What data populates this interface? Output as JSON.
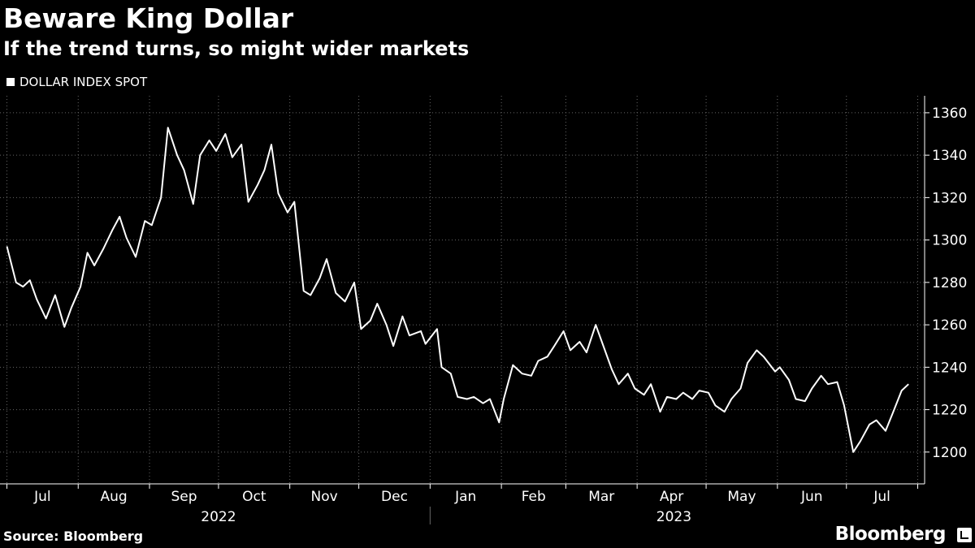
{
  "header": {
    "title": "Beware King Dollar",
    "subtitle": "If the trend turns, so might wider markets"
  },
  "footer": {
    "source": "Source: Bloomberg",
    "brand": "Bloomberg"
  },
  "colors": {
    "background": "#000000",
    "line": "#ffffff",
    "grid": "#666666",
    "text": "#ffffff"
  },
  "chart_data": {
    "type": "line",
    "title": "Beware King Dollar",
    "subtitle": "If the trend turns, so might wider markets",
    "legend": {
      "entries": [
        "DOLLAR INDEX SPOT"
      ],
      "placement": "top-left"
    },
    "y_axis": {
      "side": "right",
      "ylim": [
        1185,
        1368
      ],
      "ticks": [
        1200,
        1220,
        1240,
        1260,
        1280,
        1300,
        1320,
        1340,
        1360
      ],
      "grid": true
    },
    "x_axis": {
      "months": [
        "Jul",
        "Aug",
        "Sep",
        "Oct",
        "Nov",
        "Dec",
        "Jan",
        "Feb",
        "Mar",
        "Apr",
        "May",
        "Jun",
        "Jul"
      ],
      "years": [
        {
          "label": "2022",
          "months": [
            "Jul",
            "Aug",
            "Sep",
            "Oct",
            "Nov",
            "Dec"
          ]
        },
        {
          "label": "2023",
          "months": [
            "Jan",
            "Feb",
            "Mar",
            "Apr",
            "May",
            "Jun",
            "Jul"
          ]
        }
      ],
      "grid": true
    },
    "series": [
      {
        "name": "DOLLAR INDEX SPOT",
        "x": [
          "2022-07-01",
          "2022-07-05",
          "2022-07-08",
          "2022-07-11",
          "2022-07-14",
          "2022-07-18",
          "2022-07-22",
          "2022-07-26",
          "2022-07-29",
          "2022-08-02",
          "2022-08-05",
          "2022-08-08",
          "2022-08-12",
          "2022-08-16",
          "2022-08-19",
          "2022-08-22",
          "2022-08-26",
          "2022-08-30",
          "2022-09-02",
          "2022-09-06",
          "2022-09-09",
          "2022-09-13",
          "2022-09-16",
          "2022-09-20",
          "2022-09-23",
          "2022-09-27",
          "2022-09-30",
          "2022-10-04",
          "2022-10-07",
          "2022-10-11",
          "2022-10-14",
          "2022-10-18",
          "2022-10-21",
          "2022-10-24",
          "2022-10-27",
          "2022-10-31",
          "2022-11-03",
          "2022-11-07",
          "2022-11-10",
          "2022-11-14",
          "2022-11-17",
          "2022-11-21",
          "2022-11-25",
          "2022-11-29",
          "2022-12-02",
          "2022-12-06",
          "2022-12-09",
          "2022-12-13",
          "2022-12-16",
          "2022-12-20",
          "2022-12-23",
          "2022-12-28",
          "2022-12-30",
          "2023-01-04",
          "2023-01-06",
          "2023-01-10",
          "2023-01-13",
          "2023-01-17",
          "2023-01-20",
          "2023-01-24",
          "2023-01-27",
          "2023-01-31",
          "2023-02-02",
          "2023-02-06",
          "2023-02-10",
          "2023-02-14",
          "2023-02-17",
          "2023-02-21",
          "2023-02-24",
          "2023-02-28",
          "2023-03-03",
          "2023-03-07",
          "2023-03-10",
          "2023-03-14",
          "2023-03-17",
          "2023-03-21",
          "2023-03-24",
          "2023-03-28",
          "2023-03-31",
          "2023-04-04",
          "2023-04-07",
          "2023-04-11",
          "2023-04-14",
          "2023-04-18",
          "2023-04-21",
          "2023-04-25",
          "2023-04-28",
          "2023-05-02",
          "2023-05-05",
          "2023-05-09",
          "2023-05-12",
          "2023-05-16",
          "2023-05-19",
          "2023-05-23",
          "2023-05-26",
          "2023-05-31",
          "2023-06-02",
          "2023-06-06",
          "2023-06-09",
          "2023-06-13",
          "2023-06-16",
          "2023-06-20",
          "2023-06-23",
          "2023-06-27",
          "2023-06-30",
          "2023-07-04",
          "2023-07-07",
          "2023-07-11",
          "2023-07-14",
          "2023-07-18",
          "2023-07-21",
          "2023-07-25",
          "2023-07-28"
        ],
        "values": [
          1297,
          1280,
          1278,
          1281,
          1272,
          1263,
          1274,
          1259,
          1268,
          1278,
          1294,
          1288,
          1296,
          1305,
          1311,
          1301,
          1292,
          1309,
          1307,
          1320,
          1353,
          1340,
          1333,
          1317,
          1340,
          1347,
          1342,
          1350,
          1339,
          1345,
          1318,
          1326,
          1333,
          1345,
          1322,
          1313,
          1318,
          1276,
          1274,
          1282,
          1291,
          1275,
          1271,
          1280,
          1258,
          1262,
          1270,
          1260,
          1250,
          1264,
          1255,
          1257,
          1251,
          1258,
          1240,
          1237,
          1226,
          1225,
          1226,
          1223,
          1225,
          1214,
          1225,
          1241,
          1237,
          1236,
          1243,
          1245,
          1250,
          1257,
          1248,
          1252,
          1247,
          1260,
          1251,
          1239,
          1232,
          1237,
          1230,
          1227,
          1232,
          1219,
          1226,
          1225,
          1228,
          1225,
          1229,
          1228,
          1222,
          1219,
          1225,
          1230,
          1242,
          1248,
          1245,
          1238,
          1240,
          1234,
          1225,
          1224,
          1230,
          1236,
          1232,
          1233,
          1222,
          1200,
          1205,
          1213,
          1215,
          1210,
          1218,
          1229,
          1232
        ]
      }
    ]
  }
}
